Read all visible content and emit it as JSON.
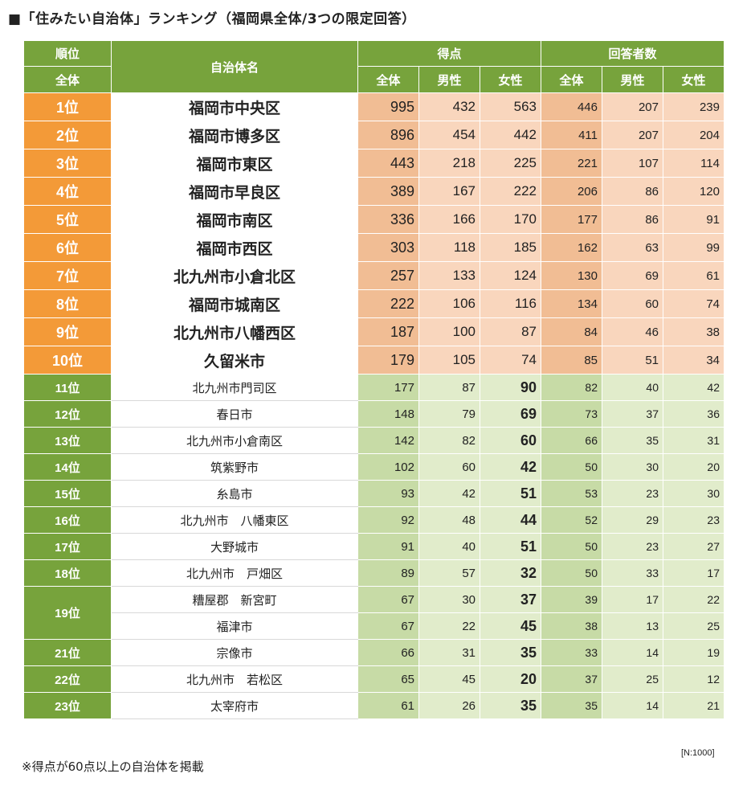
{
  "title": "■「住みたい自治体」ランキング（福岡県全体/3つの限定回答）",
  "header": {
    "rank": "順位",
    "rank_sub": "全体",
    "name": "自治体名",
    "score": "得点",
    "respondents": "回答者数",
    "total": "全体",
    "male": "男性",
    "female": "女性"
  },
  "rows": [
    {
      "rank": "1位",
      "name": "福岡市中央区",
      "s_total": "995",
      "s_male": "432",
      "s_female": "563",
      "r_total": "446",
      "r_male": "207",
      "r_female": "239"
    },
    {
      "rank": "2位",
      "name": "福岡市博多区",
      "s_total": "896",
      "s_male": "454",
      "s_female": "442",
      "r_total": "411",
      "r_male": "207",
      "r_female": "204"
    },
    {
      "rank": "3位",
      "name": "福岡市東区",
      "s_total": "443",
      "s_male": "218",
      "s_female": "225",
      "r_total": "221",
      "r_male": "107",
      "r_female": "114"
    },
    {
      "rank": "4位",
      "name": "福岡市早良区",
      "s_total": "389",
      "s_male": "167",
      "s_female": "222",
      "r_total": "206",
      "r_male": "86",
      "r_female": "120"
    },
    {
      "rank": "5位",
      "name": "福岡市南区",
      "s_total": "336",
      "s_male": "166",
      "s_female": "170",
      "r_total": "177",
      "r_male": "86",
      "r_female": "91"
    },
    {
      "rank": "6位",
      "name": "福岡市西区",
      "s_total": "303",
      "s_male": "118",
      "s_female": "185",
      "r_total": "162",
      "r_male": "63",
      "r_female": "99"
    },
    {
      "rank": "7位",
      "name": "北九州市小倉北区",
      "s_total": "257",
      "s_male": "133",
      "s_female": "124",
      "r_total": "130",
      "r_male": "69",
      "r_female": "61"
    },
    {
      "rank": "8位",
      "name": "福岡市城南区",
      "s_total": "222",
      "s_male": "106",
      "s_female": "116",
      "r_total": "134",
      "r_male": "60",
      "r_female": "74"
    },
    {
      "rank": "9位",
      "name": "北九州市八幡西区",
      "s_total": "187",
      "s_male": "100",
      "s_female": "87",
      "r_total": "84",
      "r_male": "46",
      "r_female": "38"
    },
    {
      "rank": "10位",
      "name": "久留米市",
      "s_total": "179",
      "s_male": "105",
      "s_female": "74",
      "r_total": "85",
      "r_male": "51",
      "r_female": "34"
    },
    {
      "rank": "11位",
      "name": "北九州市門司区",
      "s_total": "177",
      "s_male": "87",
      "s_female": "90",
      "r_total": "82",
      "r_male": "40",
      "r_female": "42"
    },
    {
      "rank": "12位",
      "name": "春日市",
      "s_total": "148",
      "s_male": "79",
      "s_female": "69",
      "r_total": "73",
      "r_male": "37",
      "r_female": "36"
    },
    {
      "rank": "13位",
      "name": "北九州市小倉南区",
      "s_total": "142",
      "s_male": "82",
      "s_female": "60",
      "r_total": "66",
      "r_male": "35",
      "r_female": "31"
    },
    {
      "rank": "14位",
      "name": "筑紫野市",
      "s_total": "102",
      "s_male": "60",
      "s_female": "42",
      "r_total": "50",
      "r_male": "30",
      "r_female": "20"
    },
    {
      "rank": "15位",
      "name": "糸島市",
      "s_total": "93",
      "s_male": "42",
      "s_female": "51",
      "r_total": "53",
      "r_male": "23",
      "r_female": "30"
    },
    {
      "rank": "16位",
      "name": "北九州市　八幡東区",
      "s_total": "92",
      "s_male": "48",
      "s_female": "44",
      "r_total": "52",
      "r_male": "29",
      "r_female": "23"
    },
    {
      "rank": "17位",
      "name": "大野城市",
      "s_total": "91",
      "s_male": "40",
      "s_female": "51",
      "r_total": "50",
      "r_male": "23",
      "r_female": "27"
    },
    {
      "rank": "18位",
      "name": "北九州市　戸畑区",
      "s_total": "89",
      "s_male": "57",
      "s_female": "32",
      "r_total": "50",
      "r_male": "33",
      "r_female": "17"
    },
    {
      "rank": "19位",
      "name": "糟屋郡　新宮町",
      "s_total": "67",
      "s_male": "30",
      "s_female": "37",
      "r_total": "39",
      "r_male": "17",
      "r_female": "22"
    },
    {
      "rank": "",
      "name": "福津市",
      "s_total": "67",
      "s_male": "22",
      "s_female": "45",
      "r_total": "38",
      "r_male": "13",
      "r_female": "25"
    },
    {
      "rank": "21位",
      "name": "宗像市",
      "s_total": "66",
      "s_male": "31",
      "s_female": "35",
      "r_total": "33",
      "r_male": "14",
      "r_female": "19"
    },
    {
      "rank": "22位",
      "name": "北九州市　若松区",
      "s_total": "65",
      "s_male": "45",
      "s_female": "20",
      "r_total": "37",
      "r_male": "25",
      "r_female": "12"
    },
    {
      "rank": "23位",
      "name": "太宰府市",
      "s_total": "61",
      "s_male": "26",
      "s_female": "35",
      "r_total": "35",
      "r_male": "14",
      "r_female": "21"
    }
  ],
  "sample_size": "[N:1000]",
  "footnote": "※得点が60点以上の自治体を掲載"
}
